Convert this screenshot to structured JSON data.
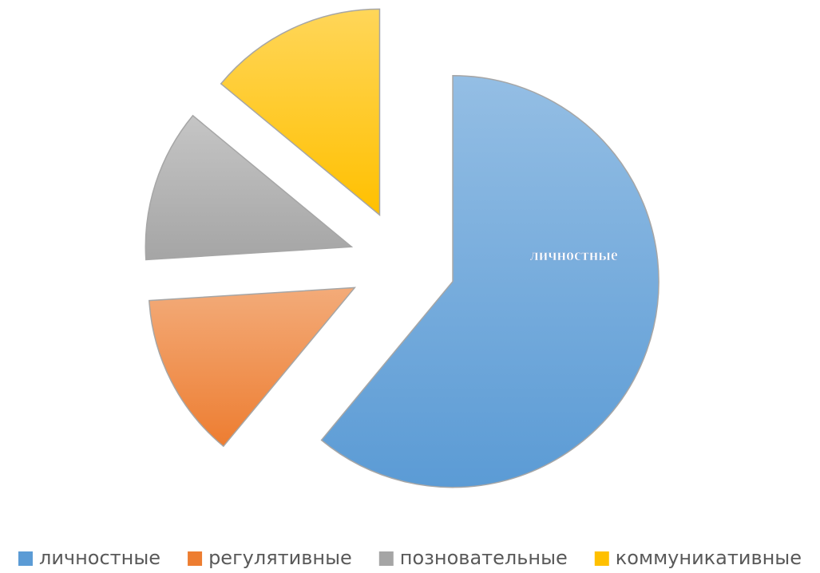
{
  "chart_data": {
    "type": "pie",
    "categories": [
      "личностные",
      "регулятивные",
      "позновательные",
      "коммуникативные"
    ],
    "values": [
      61,
      13,
      12,
      14
    ],
    "colors": [
      "#5b9bd5",
      "#ed7d31",
      "#a5a5a5",
      "#ffc000"
    ],
    "exploded": true,
    "data_labels": [
      0
    ],
    "legend": "bottom"
  }
}
